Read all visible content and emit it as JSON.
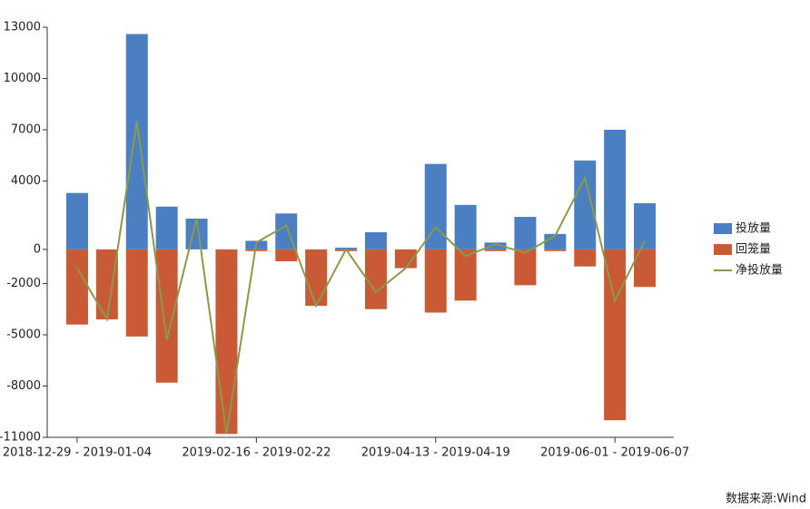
{
  "chart_data": {
    "type": "bar_line",
    "categories": [
      "2018-12-29 - 2019-01-04",
      null,
      null,
      null,
      null,
      null,
      "2019-02-16 - 2019-02-22",
      null,
      null,
      null,
      null,
      null,
      "2019-04-13 - 2019-04-19",
      null,
      null,
      null,
      null,
      null,
      "2019-06-01 - 2019-06-07",
      null
    ],
    "series": [
      {
        "name": "投放量",
        "color": "#4a7fc1",
        "kind": "bar",
        "values": [
          3300,
          0,
          12600,
          2500,
          1800,
          0,
          500,
          2100,
          0,
          100,
          1000,
          0,
          5000,
          2600,
          400,
          1900,
          900,
          5200,
          7000,
          2700
        ]
      },
      {
        "name": "回笼量",
        "color": "#c85a35",
        "kind": "bar",
        "values": [
          -4400,
          -4100,
          -5100,
          -7800,
          0,
          -10800,
          -100,
          -700,
          -3300,
          -100,
          -3500,
          -1100,
          -3700,
          -3000,
          -100,
          -2100,
          -100,
          -1000,
          -10000,
          -2200
        ]
      },
      {
        "name": "净投放量",
        "color": "#8a9a4a",
        "kind": "line",
        "values": [
          -1100,
          -4100,
          7500,
          -5300,
          1800,
          -10800,
          400,
          1400,
          -3300,
          0,
          -2500,
          -1100,
          1300,
          -400,
          300,
          -200,
          800,
          4200,
          -3000,
          500
        ]
      }
    ],
    "ylim": [
      -11000,
      13000
    ],
    "yticks": [
      13000,
      10000,
      7000,
      4000,
      0,
      -2000,
      -5000,
      -8000,
      -11000
    ],
    "legend": "right",
    "source": "数据来源:Wind"
  }
}
